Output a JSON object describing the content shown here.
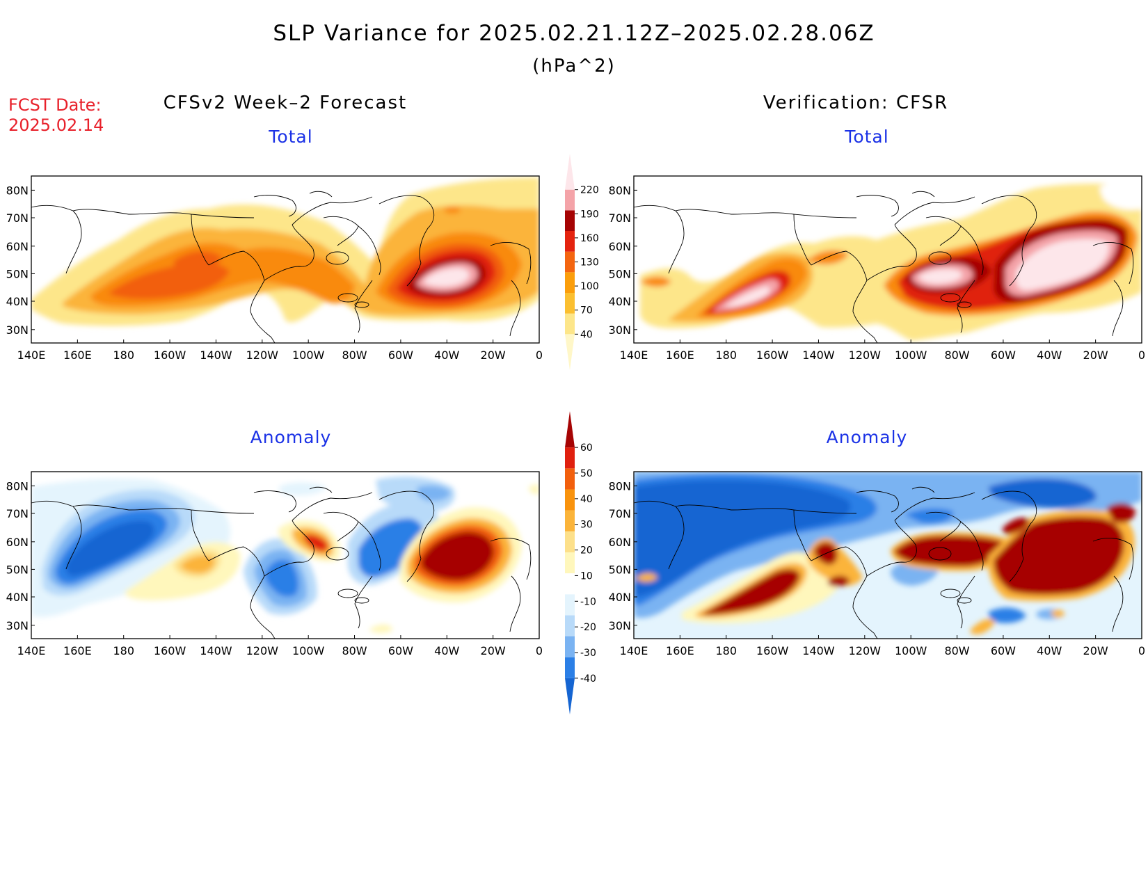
{
  "header": {
    "title": "SLP Variance for 2025.02.21.12Z–2025.02.28.06Z",
    "units": "(hPa^2)",
    "fcst_label": "FCST Date:",
    "fcst_date": "2025.02.14"
  },
  "columns": {
    "left": "CFSv2 Week–2 Forecast",
    "right": "Verification: CFSR"
  },
  "panels": {
    "total": "Total",
    "anomaly": "Anomaly"
  },
  "axes": {
    "lon_labels": [
      "140E",
      "160E",
      "180",
      "160W",
      "140W",
      "120W",
      "100W",
      "80W",
      "60W",
      "40W",
      "20W",
      "0"
    ],
    "lat_labels": [
      "30N",
      "40N",
      "50N",
      "60N",
      "70N",
      "80N"
    ]
  },
  "colorbars": {
    "total": {
      "labels": [
        "40",
        "70",
        "100",
        "130",
        "160",
        "190",
        "220"
      ],
      "colors": [
        "#fff7c8",
        "#fde68a",
        "#fbbf30",
        "#fb9e0b",
        "#f46510",
        "#e4230f",
        "#a60404",
        "#f4a3a8",
        "#fde6ea"
      ]
    },
    "anomaly": {
      "labels": [
        "-40",
        "-30",
        "-20",
        "-10",
        "10",
        "20",
        "30",
        "40",
        "50",
        "60"
      ],
      "colors": [
        "#1565d2",
        "#2b7fe6",
        "#7ab3f2",
        "#b8daf9",
        "#e4f4fd",
        "#ffffff",
        "#fff7bc",
        "#fde08a",
        "#fbb43a",
        "#f9930d",
        "#f25f0d",
        "#e0200f",
        "#a60404"
      ]
    }
  }
}
